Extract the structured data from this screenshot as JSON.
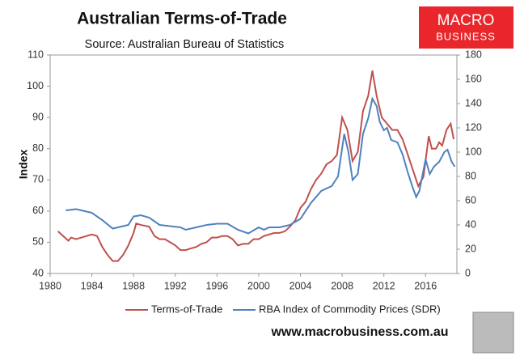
{
  "chart_data": {
    "type": "line",
    "title": "Australian Terms-of-Trade",
    "subtitle": "Source: Australian Bureau of Statistics",
    "ylabel": "Index",
    "xlim": [
      1980,
      2019
    ],
    "xticks": [
      1980,
      1984,
      1988,
      1992,
      1996,
      2000,
      2004,
      2008,
      2012,
      2016
    ],
    "ylim": [
      40,
      110
    ],
    "yticks": [
      40,
      50,
      60,
      70,
      80,
      90,
      100,
      110
    ],
    "y2lim": [
      0,
      180
    ],
    "y2ticks": [
      0,
      20,
      40,
      60,
      80,
      100,
      120,
      140,
      160,
      180
    ],
    "grid": false,
    "legend": "bottom",
    "series": [
      {
        "name": "Terms-of-Trade",
        "color": "#c0504d",
        "x": [
          1980.75,
          1981.25,
          1981.75,
          1982,
          1982.5,
          1983,
          1983.5,
          1984,
          1984.5,
          1985,
          1985.5,
          1986,
          1986.5,
          1987,
          1987.5,
          1988,
          1988.25,
          1988.75,
          1989.5,
          1990,
          1990.5,
          1991,
          1991.5,
          1992,
          1992.5,
          1993,
          1993.5,
          1994,
          1994.5,
          1995,
          1995.5,
          1996,
          1996.5,
          1997,
          1997.5,
          1998,
          1998.5,
          1999,
          1999.5,
          2000,
          2000.5,
          2001,
          2001.5,
          2002,
          2002.5,
          2003,
          2003.5,
          2004,
          2004.5,
          2005,
          2005.5,
          2006,
          2006.5,
          2007,
          2007.5,
          2008,
          2008.5,
          2009,
          2009.5,
          2010,
          2010.5,
          2010.9,
          2011.3,
          2011.8,
          2012.3,
          2012.8,
          2013.3,
          2013.8,
          2014.3,
          2014.8,
          2015.3,
          2015.8,
          2016.3,
          2016.6,
          2017,
          2017.3,
          2017.6,
          2018,
          2018.4,
          2018.7
        ],
        "values": [
          53.5,
          52,
          50.5,
          51.5,
          51,
          51.5,
          52,
          52.5,
          52,
          48.5,
          46,
          44,
          44,
          46,
          49,
          53,
          56,
          55.5,
          55,
          52,
          51,
          51,
          50,
          49,
          47.5,
          47.5,
          48,
          48.5,
          49.5,
          50,
          51.5,
          51.5,
          52,
          52,
          51,
          49,
          49.5,
          49.5,
          51,
          51,
          52,
          52.5,
          53,
          53,
          53.5,
          55,
          57,
          61,
          63,
          67,
          70,
          72,
          75,
          76,
          78,
          90,
          86,
          76,
          79,
          92,
          97,
          105,
          97,
          90,
          88,
          86,
          86,
          83,
          78,
          73,
          68,
          71,
          84,
          80,
          80,
          82,
          81,
          86,
          88,
          83
        ]
      },
      {
        "name": "RBA Index of Commodity Prices (SDR)",
        "color": "#4f81bd",
        "axis": "y2",
        "x": [
          1981.5,
          1982.5,
          1983,
          1984,
          1985,
          1986,
          1986.5,
          1987.5,
          1988,
          1988.7,
          1989.5,
          1990.5,
          1991.5,
          1992.5,
          1993,
          1994,
          1995,
          1996,
          1997,
          1998,
          1999,
          2000,
          2000.5,
          2001,
          2002,
          2003,
          2004,
          2005,
          2006,
          2007,
          2007.6,
          2008.2,
          2008.6,
          2009,
          2009.5,
          2010,
          2010.5,
          2010.9,
          2011.3,
          2011.6,
          2012,
          2012.3,
          2012.7,
          2013.3,
          2013.8,
          2014.3,
          2014.8,
          2015.1,
          2015.4,
          2016,
          2016.4,
          2016.8,
          2017.3,
          2017.8,
          2018.1,
          2018.5,
          2018.8
        ],
        "values": [
          52,
          53,
          52,
          50,
          44,
          37,
          38,
          40,
          47,
          48,
          46,
          40,
          39,
          38,
          36,
          38,
          40,
          41,
          41,
          36,
          33,
          38,
          36,
          38,
          38,
          40,
          45,
          58,
          68,
          72,
          80,
          115,
          100,
          77,
          82,
          115,
          128,
          144,
          138,
          125,
          118,
          120,
          110,
          108,
          98,
          83,
          70,
          63,
          68,
          94,
          82,
          88,
          92,
          100,
          102,
          92,
          88
        ]
      }
    ]
  },
  "logo": {
    "line1": "MACRO",
    "line2": "BUSINESS"
  },
  "footer": "www.macrobusiness.com.au"
}
